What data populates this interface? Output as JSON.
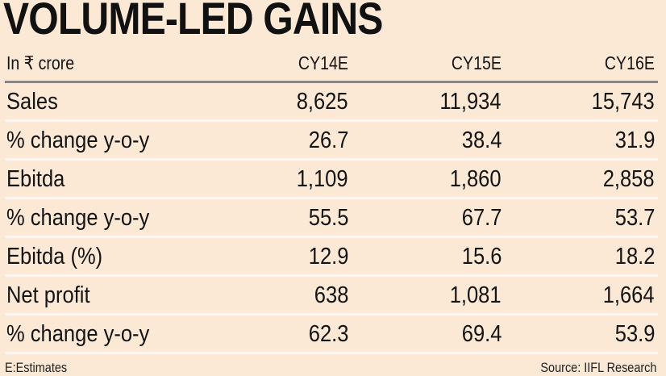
{
  "title": "VOLUME-LED GAINS",
  "header": {
    "unit": "In ₹ crore",
    "columns": [
      "CY14E",
      "CY15E",
      "CY16E"
    ]
  },
  "rows": [
    {
      "label": "Sales",
      "values": [
        "8,625",
        "11,934",
        "15,743"
      ]
    },
    {
      "label": "% change y-o-y",
      "values": [
        "26.7",
        "38.4",
        "31.9"
      ]
    },
    {
      "label": "Ebitda",
      "values": [
        "1,109",
        "1,860",
        "2,858"
      ]
    },
    {
      "label": "% change y-o-y",
      "values": [
        "55.5",
        "67.7",
        "53.7"
      ]
    },
    {
      "label": "Ebitda (%)",
      "values": [
        "12.9",
        "15.6",
        "18.2"
      ]
    },
    {
      "label": "Net profit",
      "values": [
        "638",
        "1,081",
        "1,664"
      ]
    },
    {
      "label": "% change y-o-y",
      "values": [
        "62.3",
        "69.4",
        "53.9"
      ]
    }
  ],
  "footer": {
    "note": "E:Estimates",
    "source": "Source: IIFL Research"
  }
}
